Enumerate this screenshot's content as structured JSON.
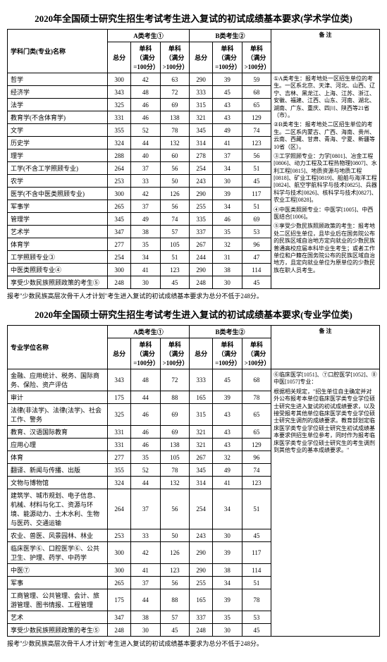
{
  "table1": {
    "title": "2020年全国硕士研究生招生考试考生进入复试的初试成绩基本要求(学术学位类)",
    "header": {
      "name": "学科门类(专业)名称",
      "catA": "A类考生①",
      "catB": "B类考生②",
      "total": "总分",
      "sub100": "单科（满分=100分）",
      "subGt100": "单科（满分>100分）",
      "notes": "备 注"
    },
    "rows": [
      {
        "name": "哲学",
        "a": [
          300,
          42,
          63
        ],
        "b": [
          290,
          39,
          59
        ]
      },
      {
        "name": "经济学",
        "a": [
          343,
          48,
          72
        ],
        "b": [
          333,
          45,
          68
        ]
      },
      {
        "name": "法学",
        "a": [
          325,
          46,
          69
        ],
        "b": [
          315,
          43,
          65
        ]
      },
      {
        "name": "教育学(不含体育学)",
        "a": [
          331,
          46,
          138
        ],
        "b": [
          321,
          43,
          129
        ]
      },
      {
        "name": "文学",
        "a": [
          355,
          52,
          78
        ],
        "b": [
          345,
          49,
          74
        ]
      },
      {
        "name": "历史学",
        "a": [
          324,
          44,
          132
        ],
        "b": [
          314,
          41,
          123
        ]
      },
      {
        "name": "理学",
        "a": [
          288,
          40,
          60
        ],
        "b": [
          278,
          37,
          56
        ]
      },
      {
        "name": "工学(不含工学照顾专业)",
        "a": [
          264,
          37,
          56
        ],
        "b": [
          254,
          34,
          51
        ]
      },
      {
        "name": "农学",
        "a": [
          253,
          33,
          50
        ],
        "b": [
          243,
          30,
          45
        ]
      },
      {
        "name": "医学(不含中医类照顾专业)",
        "a": [
          300,
          42,
          126
        ],
        "b": [
          290,
          39,
          117
        ]
      },
      {
        "name": "军事学",
        "a": [
          265,
          37,
          56
        ],
        "b": [
          255,
          34,
          51
        ]
      },
      {
        "name": "管理学",
        "a": [
          345,
          49,
          74
        ],
        "b": [
          335,
          46,
          69
        ]
      },
      {
        "name": "艺术学",
        "a": [
          347,
          38,
          57
        ],
        "b": [
          337,
          35,
          53
        ]
      },
      {
        "name": "体育学",
        "a": [
          277,
          35,
          105
        ],
        "b": [
          267,
          32,
          96
        ]
      },
      {
        "name": "工学照顾专业③",
        "a": [
          254,
          34,
          51
        ],
        "b": [
          244,
          31,
          47
        ]
      },
      {
        "name": "中医类照顾专业④",
        "a": [
          300,
          41,
          123
        ],
        "b": [
          290,
          38,
          114
        ]
      },
      {
        "name": "享受少数民族照顾政策的考生⑤",
        "a": [
          248,
          30,
          45
        ],
        "b": [
          248,
          30,
          45
        ]
      }
    ],
    "notesBlocks": [
      "①A类考生：报考地处一区招生单位的考生。一区系北京、天津、河北、山西、辽宁、吉林、黑龙江、上海、江苏、浙江、安徽、福建、江西、山东、河南、湖北、湖南、广东、重庆、四川、陕西等21省（市）。",
      "②B类考生：报考地处二区招生单位的考生。二区系内蒙古、广西、海南、贵州、云南、西藏、甘肃、青海、宁夏、新疆等10省（区）。",
      "③工学照顾专业：力学[0801]、冶金工程[0806]、动力工程及工程热物理[0807]、水利工程[0815]、地质资源与地质工程[0818]、矿业工程[0819]、船舶与海洋工程[0824]、航空宇航科学与技术[0825]、兵器科学与技术[0826]、核科学与技术[0827]、农业工程[0828]。",
      "④中医类照顾专业：中医学[1005]、中西医结合[1006]。",
      "⑤享受少数民族照顾政策的考生：报考地处二区招生单位，且毕业后在国务院公布的民族区域自治地方定向就业的少数民族普通高校应届本科毕业生考生；或者工作单位和户籍在国务院公布的民族区域自治地方，且定向就业单位为原单位的少数民族在职人员考生。"
    ],
    "footnote": "报考\"少数民族高层次骨干人才计划\"考生进入复试的初试成绩基本要求为总分不低于248分。"
  },
  "table2": {
    "title": "2020年全国硕士研究生招生考试考生进入复试的初试成绩基本要求(专业学位类)",
    "header": {
      "name": "专业学位名称",
      "catA": "A类考生①",
      "catB": "B类考生②",
      "total": "总分",
      "sub100": "单科（满分=100分）",
      "subGt100": "单科（满分>100分）",
      "notes": "备 注"
    },
    "rows": [
      {
        "name": "金融、应用统计、税务、国际商务、保险、资产评估",
        "a": [
          343,
          48,
          72
        ],
        "b": [
          333,
          45,
          68
        ]
      },
      {
        "name": "审计",
        "a": [
          175,
          44,
          88
        ],
        "b": [
          165,
          39,
          78
        ]
      },
      {
        "name": "法律(非法学)、法律(法学)、社会工作、警务",
        "a": [
          325,
          46,
          69
        ],
        "b": [
          315,
          43,
          65
        ]
      },
      {
        "name": "教育、汉语国际教育",
        "a": [
          331,
          46,
          69
        ],
        "b": [
          321,
          43,
          65
        ]
      },
      {
        "name": "应用心理",
        "a": [
          331,
          46,
          138
        ],
        "b": [
          321,
          43,
          129
        ]
      },
      {
        "name": "体育",
        "a": [
          277,
          35,
          105
        ],
        "b": [
          267,
          32,
          96
        ]
      },
      {
        "name": "翻译、新闻与传播、出版",
        "a": [
          355,
          52,
          78
        ],
        "b": [
          345,
          49,
          74
        ]
      },
      {
        "name": "文物与博物馆",
        "a": [
          324,
          44,
          132
        ],
        "b": [
          314,
          41,
          123
        ]
      },
      {
        "name": "建筑学、城市规划、电子信息、机械、材料与化工、资源与环境、能源动力、土木水利、生物与医药、交通运输",
        "a": [
          264,
          37,
          56
        ],
        "b": [
          254,
          34,
          51
        ]
      },
      {
        "name": "农业、兽医、风景园林、林业",
        "a": [
          253,
          33,
          50
        ],
        "b": [
          243,
          30,
          45
        ]
      },
      {
        "name": "临床医学⑥、口腔医学⑥、公共卫生、护理、药学、中药学",
        "a": [
          300,
          42,
          126
        ],
        "b": [
          290,
          39,
          117
        ]
      },
      {
        "name": "中医⑦",
        "a": [
          300,
          41,
          123
        ],
        "b": [
          290,
          38,
          114
        ]
      },
      {
        "name": "军事",
        "a": [
          265,
          37,
          56
        ],
        "b": [
          255,
          34,
          51
        ]
      },
      {
        "name": "工商管理、公共管理、会计、旅游管理、图书情报、工程管理",
        "a": [
          175,
          44,
          88
        ],
        "b": [
          165,
          39,
          78
        ]
      },
      {
        "name": "艺术",
        "a": [
          347,
          38,
          57
        ],
        "b": [
          337,
          35,
          53
        ]
      },
      {
        "name": "享受少数民族照顾政策的考生⑤",
        "a": [
          248,
          30,
          45
        ],
        "b": [
          248,
          30,
          45
        ]
      }
    ],
    "notesBlocks": [
      "⑥临床医学[1051]、⑦口腔医学[1052]、⑧中医[1057]专业：",
      "根据相关规定，\"招生单位自主确定并对外公布报考本单位临床医学类专业学位硕士研究生进入复试的初试成绩要求，以及接受报考其他单位临床医学类专业学位硕士研究生调剂的成绩要求。教育部划定临床医学类专业学位硕士研究生初试成绩基本要求供招生单位参考，同时作为报考临床医学类专业学位硕士研究生的考生调剂到其他专业的基本成绩要求。\""
    ],
    "footnote": "报考\"少数民族高层次骨干人才计划\"考生进入复试的初试成绩基本要求为总分不低于248分。"
  }
}
